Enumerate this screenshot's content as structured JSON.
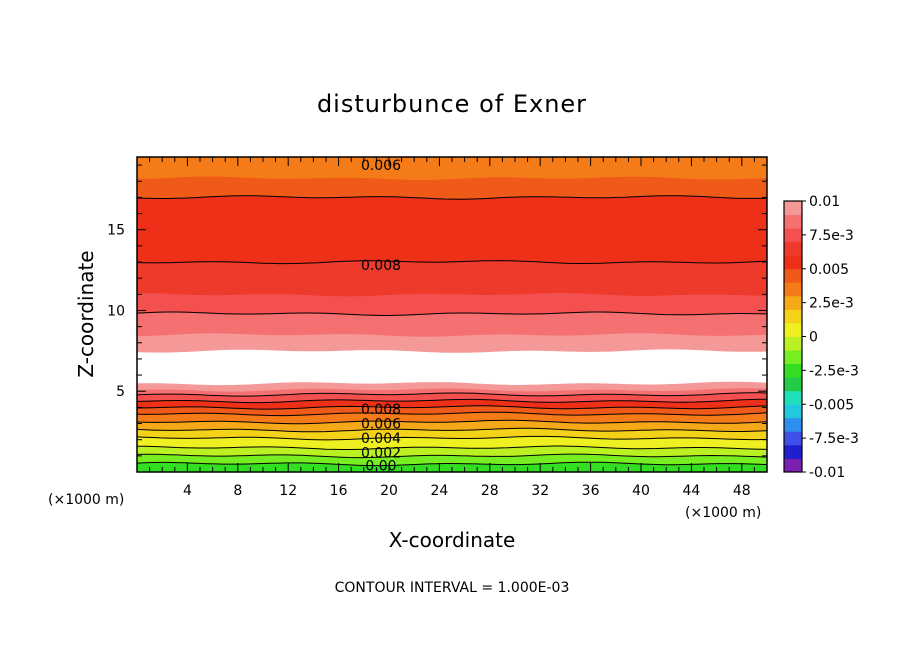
{
  "chart_data": {
    "type": "heatmap",
    "title": "disturbunce of Exner",
    "xlabel": "X-coordinate",
    "ylabel": "Z-coordinate",
    "x_unit": "(×1000 m)",
    "xlim": [
      0,
      50
    ],
    "ylim": [
      0,
      19.5
    ],
    "x_ticks": [
      "4",
      "8",
      "12",
      "16",
      "20",
      "24",
      "28",
      "32",
      "36",
      "40",
      "44",
      "48"
    ],
    "y_ticks": [
      "5",
      "10",
      "15"
    ],
    "colorbar": {
      "labels": [
        "0.01",
        "7.5e-3",
        "0.005",
        "2.5e-3",
        "0",
        "-2.5e-3",
        "-0.005",
        "-7.5e-3",
        "-0.01"
      ],
      "min": -0.01,
      "max": 0.01,
      "colors": [
        "#7a1fb0",
        "#1f1fd0",
        "#3f50e8",
        "#2f8ff0",
        "#22c8e0",
        "#1fe0b8",
        "#22cc44",
        "#33dd22",
        "#77ee22",
        "#bbf022",
        "#eef022",
        "#f5d21a",
        "#f5a818",
        "#f57a18",
        "#f05a18",
        "#ee3018",
        "#ee3a2a",
        "#f45050",
        "#f57070",
        "#f59898"
      ]
    },
    "bands": [
      {
        "z": 0.0,
        "color": "#33dd22"
      },
      {
        "z": 0.5,
        "color": "#77ee22"
      },
      {
        "z": 1.0,
        "color": "#bbf022"
      },
      {
        "z": 1.5,
        "color": "#eef022"
      },
      {
        "z": 2.1,
        "color": "#f5d21a"
      },
      {
        "z": 2.6,
        "color": "#f5a818"
      },
      {
        "z": 3.1,
        "color": "#f57a18"
      },
      {
        "z": 3.6,
        "color": "#f05a18"
      },
      {
        "z": 4.0,
        "color": "#ee3018"
      },
      {
        "z": 4.4,
        "color": "#f45050"
      },
      {
        "z": 4.8,
        "color": "#f57070"
      },
      {
        "z": 5.1,
        "color": "#f59898"
      },
      {
        "z": 5.5,
        "color": "#ffffff"
      },
      {
        "z": 7.5,
        "color": "#f59898"
      },
      {
        "z": 8.5,
        "color": "#f57070"
      },
      {
        "z": 9.8,
        "color": "#f45050"
      },
      {
        "z": 11.0,
        "color": "#ee3a2a"
      },
      {
        "z": 13.0,
        "color": "#ee3018"
      },
      {
        "z": 17.0,
        "color": "#f05a18"
      },
      {
        "z": 18.2,
        "color": "#f57a18"
      }
    ],
    "contour_lines": [
      0.5,
      1.0,
      1.5,
      2.1,
      2.6,
      3.1,
      3.6,
      4.0,
      4.4,
      4.8,
      9.8,
      13.0,
      17.0,
      19.5
    ],
    "contour_labels": [
      {
        "text": "0.006",
        "x": 20,
        "z": 19.0
      },
      {
        "text": "0.008",
        "x": 20,
        "z": 12.8
      },
      {
        "text": "0.008",
        "x": 20,
        "z": 3.9
      },
      {
        "text": "0.006",
        "x": 20,
        "z": 3.0
      },
      {
        "text": "0.004",
        "x": 20,
        "z": 2.1
      },
      {
        "text": "0.002",
        "x": 20,
        "z": 1.2
      },
      {
        "text": "0.00",
        "x": 20,
        "z": 0.4
      }
    ],
    "footer": "CONTOUR INTERVAL = 1.000E-03"
  }
}
